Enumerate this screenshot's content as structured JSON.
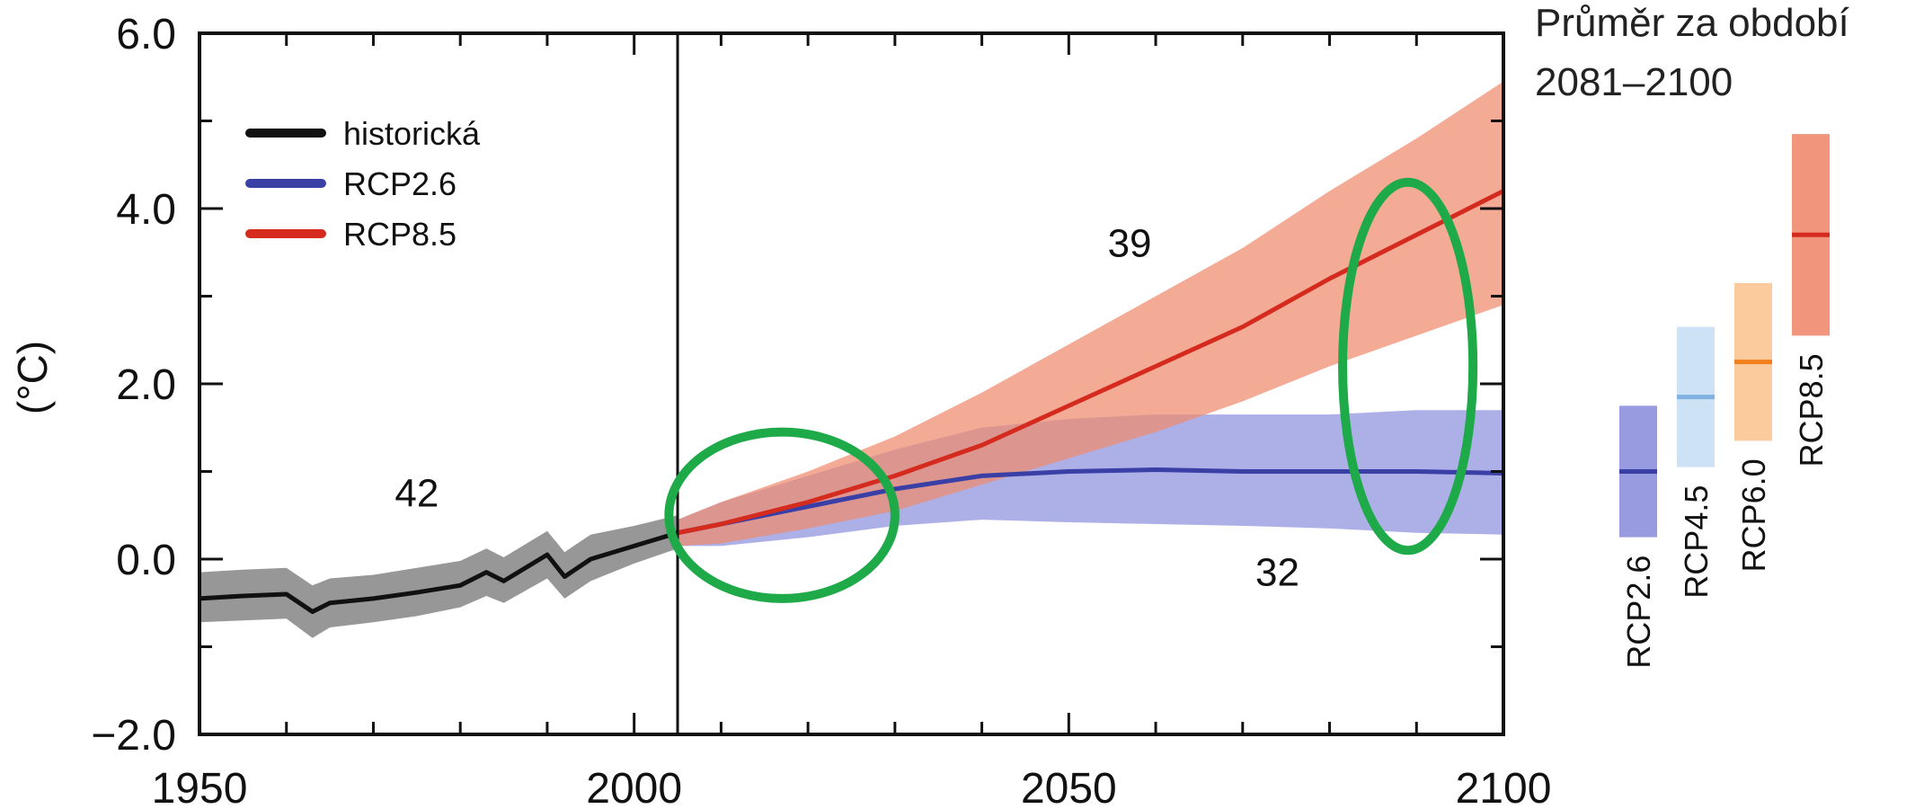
{
  "chart_data": {
    "type": "line",
    "title": "",
    "xlabel": "",
    "ylabel": "(°C)",
    "xlim": [
      1950,
      2100
    ],
    "ylim": [
      -2.0,
      6.0
    ],
    "x_ticks": [
      1950,
      2000,
      2050,
      2100
    ],
    "x_tick_labels": [
      "1950",
      "2000",
      "2050",
      "2100"
    ],
    "y_ticks": [
      -2.0,
      0.0,
      2.0,
      4.0,
      6.0
    ],
    "y_tick_labels": [
      "−2.0",
      "0.0",
      "2.0",
      "4.0",
      "6.0"
    ],
    "grid": false,
    "legend_position": "top-left",
    "divider_year": 2005,
    "series": [
      {
        "name": "historická",
        "color": "#111111",
        "band_color": "#8c8c8c",
        "model_count": "42",
        "x": [
          1950,
          1955,
          1960,
          1963,
          1965,
          1970,
          1975,
          1980,
          1983,
          1985,
          1990,
          1992,
          1995,
          2000,
          2005
        ],
        "y": [
          -0.45,
          -0.42,
          -0.4,
          -0.6,
          -0.5,
          -0.45,
          -0.38,
          -0.3,
          -0.15,
          -0.25,
          0.05,
          -0.2,
          0.0,
          0.15,
          0.3
        ],
        "lower": [
          -0.72,
          -0.7,
          -0.68,
          -0.9,
          -0.78,
          -0.72,
          -0.65,
          -0.55,
          -0.42,
          -0.5,
          -0.22,
          -0.45,
          -0.25,
          -0.05,
          0.12
        ],
        "upper": [
          -0.15,
          -0.12,
          -0.1,
          -0.3,
          -0.22,
          -0.18,
          -0.1,
          -0.02,
          0.12,
          0.02,
          0.32,
          0.08,
          0.28,
          0.38,
          0.5
        ]
      },
      {
        "name": "RCP2.6",
        "color": "#3a3fa6",
        "band_color": "#8e90de",
        "model_count": "32",
        "x": [
          2005,
          2010,
          2020,
          2030,
          2040,
          2050,
          2060,
          2070,
          2080,
          2090,
          2100
        ],
        "y": [
          0.3,
          0.4,
          0.6,
          0.8,
          0.95,
          1.0,
          1.02,
          1.0,
          1.0,
          1.0,
          0.98
        ],
        "lower": [
          0.15,
          0.15,
          0.25,
          0.38,
          0.45,
          0.42,
          0.4,
          0.38,
          0.35,
          0.3,
          0.28
        ],
        "upper": [
          0.45,
          0.65,
          0.95,
          1.25,
          1.5,
          1.6,
          1.65,
          1.65,
          1.65,
          1.7,
          1.7
        ]
      },
      {
        "name": "RCP8.5",
        "color": "#d52a1e",
        "band_color": "#f08a6e",
        "model_count": "39",
        "x": [
          2005,
          2010,
          2020,
          2030,
          2040,
          2050,
          2060,
          2070,
          2080,
          2090,
          2100
        ],
        "y": [
          0.3,
          0.4,
          0.65,
          0.95,
          1.3,
          1.75,
          2.2,
          2.65,
          3.2,
          3.7,
          4.2
        ],
        "lower": [
          0.15,
          0.18,
          0.35,
          0.55,
          0.85,
          1.15,
          1.45,
          1.8,
          2.2,
          2.55,
          2.9
        ],
        "upper": [
          0.45,
          0.65,
          1.0,
          1.4,
          1.9,
          2.45,
          3.0,
          3.55,
          4.2,
          4.8,
          5.45
        ]
      }
    ],
    "side_panel": {
      "title_line1": "Průměr za období",
      "title_line2": "2081–2100",
      "bars": [
        {
          "name": "RCP2.6",
          "mean": 1.0,
          "low": 0.25,
          "high": 1.75,
          "line_color": "#3a3fa6",
          "band_color": "#8e90de"
        },
        {
          "name": "RCP4.5",
          "mean": 1.85,
          "low": 1.05,
          "high": 2.65,
          "line_color": "#7fb2e0",
          "band_color": "#c9dff4"
        },
        {
          "name": "RCP6.0",
          "mean": 2.25,
          "low": 1.35,
          "high": 3.15,
          "line_color": "#f07f1c",
          "band_color": "#fbc592"
        },
        {
          "name": "RCP8.5",
          "mean": 3.7,
          "low": 2.55,
          "high": 4.85,
          "line_color": "#d52a1e",
          "band_color": "#f08a6e"
        }
      ]
    },
    "annotations": [
      {
        "shape": "ellipse",
        "color": "#1faa4a",
        "x_center": 2017,
        "y_center": 0.5,
        "x_radius": 13,
        "y_radius": 0.95
      },
      {
        "shape": "ellipse",
        "color": "#1faa4a",
        "x_center": 2089,
        "y_center": 2.2,
        "x_radius": 7.5,
        "y_radius": 2.1
      }
    ]
  }
}
